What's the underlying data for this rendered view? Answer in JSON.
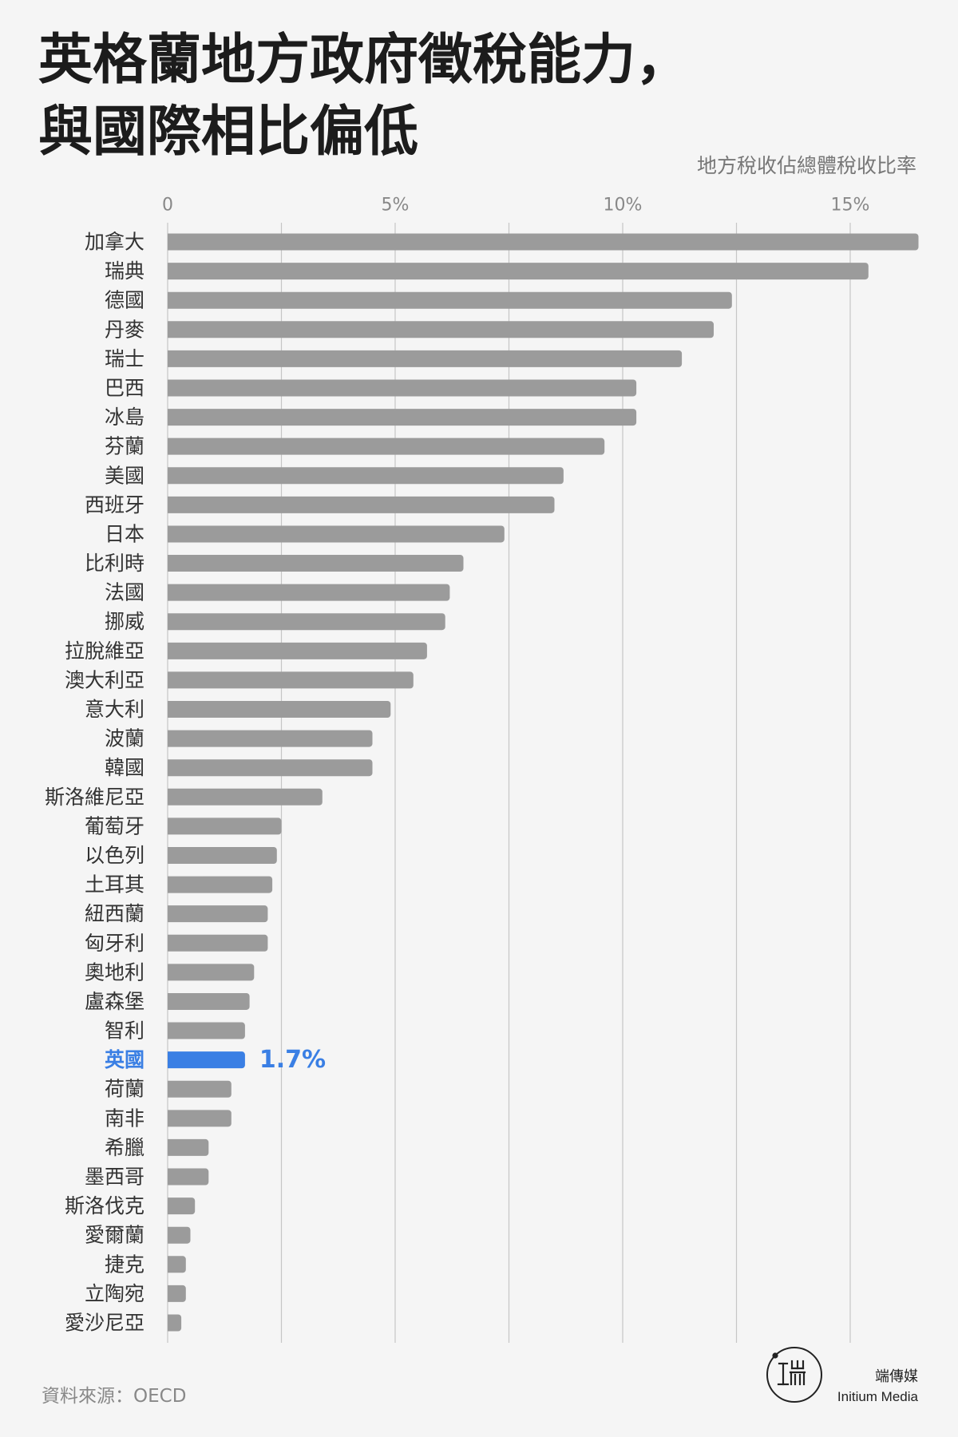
{
  "chart_data": {
    "type": "bar",
    "orientation": "horizontal",
    "title_lines": [
      "英格蘭地方政府徵稅能力，",
      "與國際相比偏低"
    ],
    "subtitle": "地方稅收佔總體稅收比率",
    "categories": [
      "加拿大",
      "瑞典",
      "德國",
      "丹麥",
      "瑞士",
      "巴西",
      "冰島",
      "芬蘭",
      "美國",
      "西班牙",
      "日本",
      "比利時",
      "法國",
      "挪威",
      "拉脫維亞",
      "澳大利亞",
      "意大利",
      "波蘭",
      "韓國",
      "斯洛維尼亞",
      "葡萄牙",
      "以色列",
      "土耳其",
      "紐西蘭",
      "匈牙利",
      "奧地利",
      "盧森堡",
      "智利",
      "英國",
      "荷蘭",
      "南非",
      "希臘",
      "墨西哥",
      "斯洛伐克",
      "愛爾蘭",
      "捷克",
      "立陶宛",
      "愛沙尼亞"
    ],
    "values": [
      16.5,
      15.4,
      12.4,
      12.0,
      11.3,
      10.3,
      10.3,
      9.6,
      8.7,
      8.5,
      7.4,
      6.5,
      6.2,
      6.1,
      5.7,
      5.4,
      4.9,
      4.5,
      4.5,
      3.4,
      2.5,
      2.4,
      2.3,
      2.2,
      2.2,
      1.9,
      1.8,
      1.7,
      1.7,
      1.4,
      1.4,
      0.9,
      0.9,
      0.6,
      0.5,
      0.4,
      0.4,
      0.3
    ],
    "x_ticks": [
      0,
      5,
      10,
      15
    ],
    "x_tick_labels": [
      "0",
      "5%",
      "10%",
      "15%"
    ],
    "xlim": [
      0,
      16.5
    ],
    "grid": true,
    "grid_lines": [
      0,
      2.5,
      5,
      7.5,
      10,
      12.5,
      15
    ],
    "highlight": {
      "index": 28,
      "value_label": "1.7%"
    },
    "colors": {
      "bar": "#9b9b9b",
      "highlight": "#3a7fe4",
      "grid": "#c6c6c6",
      "label": "#333333"
    }
  },
  "source": "資料來源：OECD",
  "brand": {
    "name_zh": "端傳媒",
    "name_en": "Initium Media",
    "logo": "initium-logo"
  }
}
